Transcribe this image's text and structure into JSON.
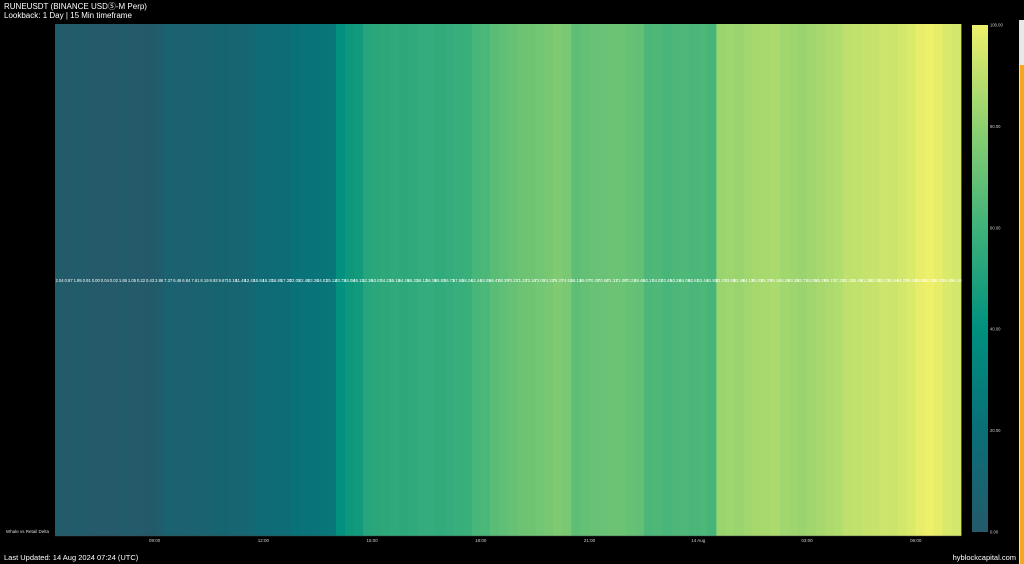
{
  "header": {
    "title": "RUNEUSDT (BINANCE USDⓈ-M Perp)",
    "subtitle": "Lookback: 1 Day | 15 Min timeframe"
  },
  "footer": {
    "last_updated": "Last Updated: 14 Aug 2024 07:24 (UTC)",
    "brand": "hyblockcapital.com"
  },
  "chart_data": {
    "type": "heatmap",
    "row_label": "Whale vs Retail Delta",
    "x_ticks": [
      "09:00",
      "12:00",
      "15:00",
      "18:00",
      "21:00",
      "14 Aug",
      "03:00",
      "06:00"
    ],
    "x_tick_positions_time": [
      "2024-08-13 09:00",
      "2024-08-13 12:00",
      "2024-08-13 15:00",
      "2024-08-13 18:00",
      "2024-08-13 21:00",
      "2024-08-14 00:00",
      "2024-08-14 03:00",
      "2024-08-14 06:00"
    ],
    "x_start": "2024-08-13 06:15",
    "interval_minutes": 15,
    "values": [
      2.04,
      0.87,
      1.95,
      0.91,
      0.0,
      0.04,
      0.02,
      1.65,
      1.05,
      0.22,
      0.43,
      2.86,
      7.37,
      6.46,
      6.84,
      7.61,
      8.19,
      8.93,
      9.67,
      10.18,
      11.48,
      12.45,
      15.84,
      16.2,
      16.85,
      17.3,
      22.05,
      22.48,
      23.26,
      24.01,
      25.12,
      40.73,
      44.08,
      46.13,
      52.36,
      53.67,
      54.23,
      55.18,
      54.26,
      55.31,
      56.12,
      56.39,
      55.82,
      56.73,
      57.5,
      58.24,
      62.44,
      63.05,
      66.47,
      68.39,
      70.21,
      71.33,
      72.16,
      73.05,
      74.22,
      76.37,
      74.61,
      68.13,
      69.07,
      70.28,
      70.59,
      71.31,
      71.08,
      70.23,
      69.46,
      63.17,
      64.02,
      62.45,
      63.28,
      64.09,
      62.81,
      63.44,
      61.93,
      82.37,
      83.08,
      82.46,
      84.12,
      85.03,
      85.37,
      86.14,
      84.26,
      83.39,
      82.71,
      84.05,
      85.28,
      86.17,
      87.33,
      90.12,
      90.48,
      91.36,
      92.05,
      93.21,
      92.64,
      94.37,
      96.18,
      99.05,
      100.0,
      98.27,
      95.4,
      94.16
    ],
    "colorbar": {
      "range": [
        0,
        100
      ],
      "ticks": [
        "0.00",
        "20.00",
        "40.00",
        "60.00",
        "80.00",
        "100.00"
      ],
      "colorscale": [
        "#245a6a",
        "#0a6f78",
        "#00907e",
        "#3fb27a",
        "#8ed070",
        "#eef06a"
      ]
    }
  }
}
